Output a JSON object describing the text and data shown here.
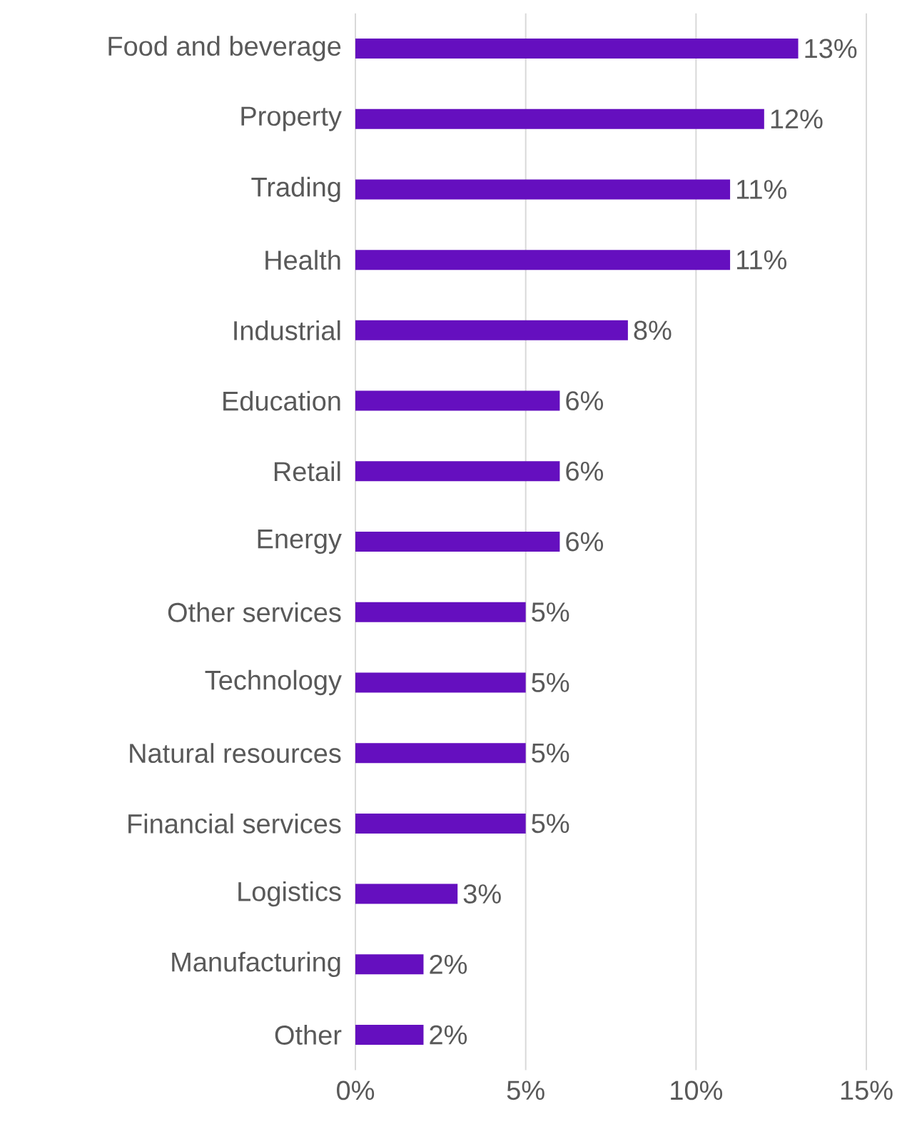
{
  "chart_data": {
    "type": "bar",
    "orientation": "horizontal",
    "categories": [
      "Food and beverage",
      "Property",
      "Trading",
      "Health",
      "Industrial",
      "Education",
      "Retail",
      "Energy",
      "Other services",
      "Technology",
      "Natural resources",
      "Financial services",
      "Logistics",
      "Manufacturing",
      "Other"
    ],
    "values": [
      13,
      12,
      11,
      11,
      8,
      6,
      6,
      6,
      5,
      5,
      5,
      5,
      3,
      2,
      2
    ],
    "value_labels": [
      "13%",
      "12%",
      "11%",
      "11%",
      "8%",
      "6%",
      "6%",
      "6%",
      "5%",
      "5%",
      "5%",
      "5%",
      "3%",
      "2%",
      "2%"
    ],
    "color": "#650fbf",
    "xlim": [
      0,
      15
    ],
    "xticks": [
      {
        "value": 0,
        "label": "0%"
      },
      {
        "value": 5,
        "label": "5%"
      },
      {
        "value": 10,
        "label": "10%"
      },
      {
        "value": 15,
        "label": "15%"
      }
    ],
    "grid": "x"
  }
}
